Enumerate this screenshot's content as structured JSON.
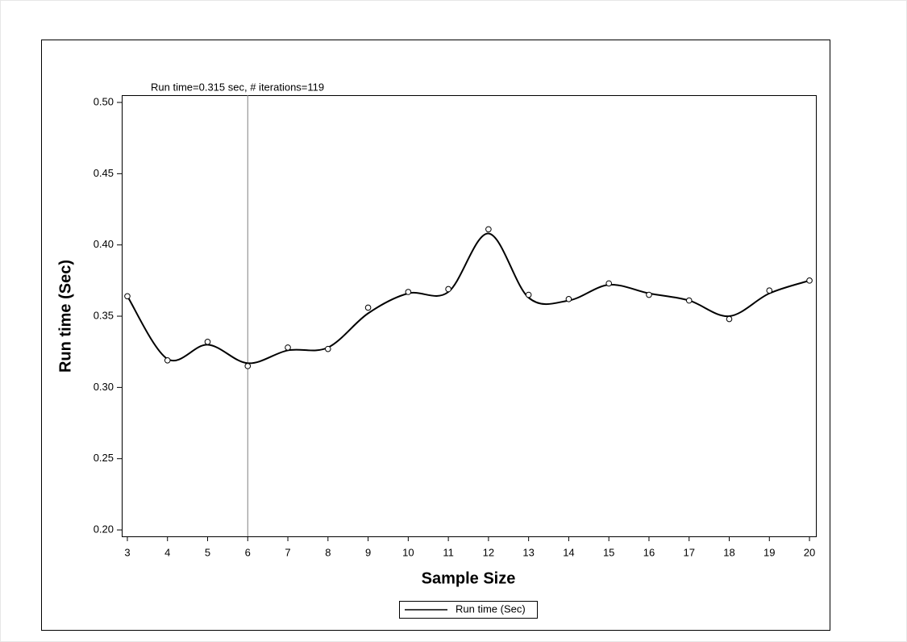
{
  "chart_data": {
    "type": "line",
    "annotation": "Run time=0.315 sec, # iterations=119",
    "x_label": "Sample Size",
    "y_label": "Run time (Sec)",
    "x": [
      3,
      4,
      5,
      6,
      7,
      8,
      9,
      10,
      11,
      12,
      13,
      14,
      15,
      16,
      17,
      18,
      19,
      20
    ],
    "series": [
      {
        "name": "Run time (Sec)",
        "color": "#000000",
        "values": [
          0.364,
          0.32,
          0.33,
          0.317,
          0.326,
          0.328,
          0.352,
          0.366,
          0.367,
          0.408,
          0.363,
          0.361,
          0.372,
          0.366,
          0.361,
          0.35,
          0.366,
          0.375
        ]
      }
    ],
    "markers": {
      "color": "#000000",
      "values": [
        0.364,
        0.319,
        0.332,
        0.315,
        0.328,
        0.327,
        0.356,
        0.367,
        0.369,
        0.411,
        0.365,
        0.362,
        0.373,
        0.365,
        0.361,
        0.348,
        0.368,
        0.375
      ]
    },
    "reference_line": {
      "x": 6,
      "color": "#808080"
    },
    "xlim": [
      2.86,
      20.16
    ],
    "ylim": [
      0.1955,
      0.5051
    ],
    "xticks": [
      3,
      4,
      5,
      6,
      7,
      8,
      9,
      10,
      11,
      12,
      13,
      14,
      15,
      16,
      17,
      18,
      19,
      20
    ],
    "yticks": [
      {
        "value": 0.2,
        "label": "0.20"
      },
      {
        "value": 0.25,
        "label": "0.25"
      },
      {
        "value": 0.3,
        "label": "0.30"
      },
      {
        "value": 0.35,
        "label": "0.35"
      },
      {
        "value": 0.4,
        "label": "0.40"
      },
      {
        "value": 0.45,
        "label": "0.45"
      },
      {
        "value": 0.5,
        "label": "0.50"
      }
    ],
    "legend": "bottom"
  }
}
